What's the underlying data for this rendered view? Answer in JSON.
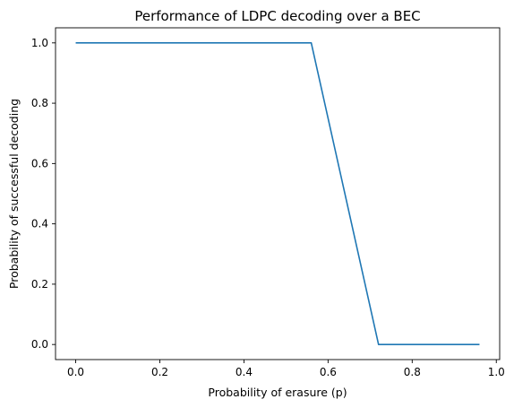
{
  "chart_data": {
    "type": "line",
    "title": "Performance of LDPC decoding over a BEC",
    "xlabel": "Probability of erasure (p)",
    "ylabel": "Probability of successful decoding",
    "xlim": [
      -0.048,
      1.008
    ],
    "ylim": [
      -0.05,
      1.05
    ],
    "xticks": [
      0.0,
      0.2,
      0.4,
      0.6,
      0.8,
      1.0
    ],
    "xtick_labels": [
      "0.0",
      "0.2",
      "0.4",
      "0.6",
      "0.8",
      "1.0"
    ],
    "yticks": [
      0.0,
      0.2,
      0.4,
      0.6,
      0.8,
      1.0
    ],
    "ytick_labels": [
      "0.0",
      "0.2",
      "0.4",
      "0.6",
      "0.8",
      "1.0"
    ],
    "grid": false,
    "series": [
      {
        "color": "#1f77b4",
        "x": [
          0.0,
          0.56,
          0.72,
          0.96
        ],
        "y": [
          1.0,
          1.0,
          0.0,
          0.0
        ]
      }
    ]
  }
}
